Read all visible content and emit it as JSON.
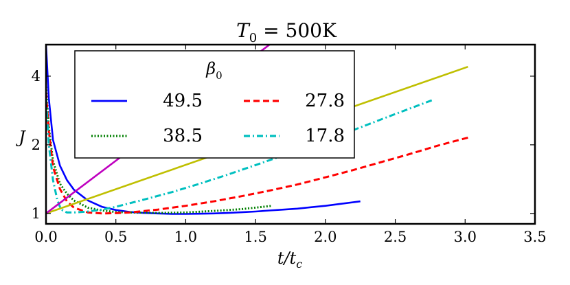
{
  "chart_data": {
    "type": "line",
    "title": "T_0 = 500K",
    "title_parts": {
      "base": "T",
      "sub": "0",
      "rest": " = 500K"
    },
    "xlabel": "t/t_c",
    "xlabel_parts": {
      "a": "t/t",
      "sub": "c"
    },
    "ylabel": "J",
    "xlim": [
      0,
      3.5
    ],
    "ylim": [
      0.9,
      5.5
    ],
    "y_scale": "log",
    "xticks": [
      0,
      0.5,
      1,
      1.5,
      2,
      2.5,
      3,
      3.5
    ],
    "xtick_labels": [
      "0.0",
      "0.5",
      "1.0",
      "1.5",
      "2.0",
      "2.5",
      "3.0",
      "3.5"
    ],
    "yticks": [
      1,
      2,
      4
    ],
    "ytick_labels": [
      "1",
      "2",
      "4"
    ],
    "legend": {
      "title": "β",
      "title_sub": "0",
      "placement": "upper-left",
      "columns": 2
    },
    "grid": false,
    "series": [
      {
        "name": "49.5",
        "color": "#0000ff",
        "style": "solid",
        "x": [
          0.0,
          0.02,
          0.05,
          0.1,
          0.15,
          0.2,
          0.3,
          0.4,
          0.5,
          0.6,
          0.7,
          0.8,
          0.9,
          1.0,
          1.1,
          1.2,
          1.3,
          1.4,
          1.5,
          1.6,
          1.7,
          1.8,
          1.9,
          2.0,
          2.1,
          2.25
        ],
        "y": [
          5.5,
          3.2,
          2.1,
          1.62,
          1.4,
          1.27,
          1.14,
          1.07,
          1.035,
          1.015,
          1.005,
          1.0,
          0.995,
          0.995,
          0.997,
          1.0,
          1.005,
          1.012,
          1.02,
          1.03,
          1.04,
          1.05,
          1.065,
          1.08,
          1.1,
          1.13
        ]
      },
      {
        "name": "38.5",
        "color": "#007f00",
        "style": "dotted",
        "x": [
          0.0,
          0.02,
          0.05,
          0.1,
          0.15,
          0.2,
          0.3,
          0.4,
          0.5,
          0.6,
          0.8,
          1.0,
          1.2,
          1.4,
          1.62
        ],
        "y": [
          3.6,
          2.4,
          1.7,
          1.35,
          1.22,
          1.14,
          1.06,
          1.03,
          1.015,
          1.01,
          1.005,
          1.01,
          1.025,
          1.045,
          1.08
        ]
      },
      {
        "name": "27.8",
        "color": "#ff0000",
        "style": "dashed",
        "x": [
          0.0,
          0.02,
          0.05,
          0.1,
          0.15,
          0.2,
          0.3,
          0.4,
          0.5,
          0.6,
          0.8,
          1.0,
          1.2,
          1.4,
          1.6,
          1.8,
          2.0,
          2.2,
          2.4,
          2.6,
          2.8,
          3.02
        ],
        "y": [
          3.4,
          2.3,
          1.6,
          1.28,
          1.13,
          1.06,
          1.01,
          1.0,
          1.003,
          1.01,
          1.04,
          1.08,
          1.13,
          1.19,
          1.26,
          1.34,
          1.44,
          1.55,
          1.68,
          1.82,
          1.98,
          2.15
        ]
      },
      {
        "name": "17.8",
        "color": "#00bfbf",
        "style": "dashdot",
        "x": [
          0.0,
          0.02,
          0.05,
          0.08,
          0.1,
          0.12,
          0.15,
          0.2,
          0.3,
          0.4,
          0.5,
          0.7,
          0.9,
          1.1,
          1.3,
          1.5,
          1.7,
          1.9,
          2.1,
          2.3,
          2.5,
          2.77
        ],
        "y": [
          3.2,
          2.0,
          1.4,
          1.15,
          1.07,
          1.03,
          1.01,
          1.01,
          1.02,
          1.04,
          1.07,
          1.15,
          1.24,
          1.35,
          1.48,
          1.63,
          1.8,
          1.99,
          2.2,
          2.45,
          2.73,
          3.15
        ]
      },
      {
        "name": "",
        "color": "#bfbf00",
        "style": "solid",
        "x": [
          0.0,
          3.02
        ],
        "y": [
          1.0,
          4.4
        ]
      },
      {
        "name": "",
        "color": "#bf00bf",
        "style": "solid",
        "x": [
          0.0,
          1.6
        ],
        "y": [
          1.0,
          5.5
        ]
      }
    ]
  }
}
